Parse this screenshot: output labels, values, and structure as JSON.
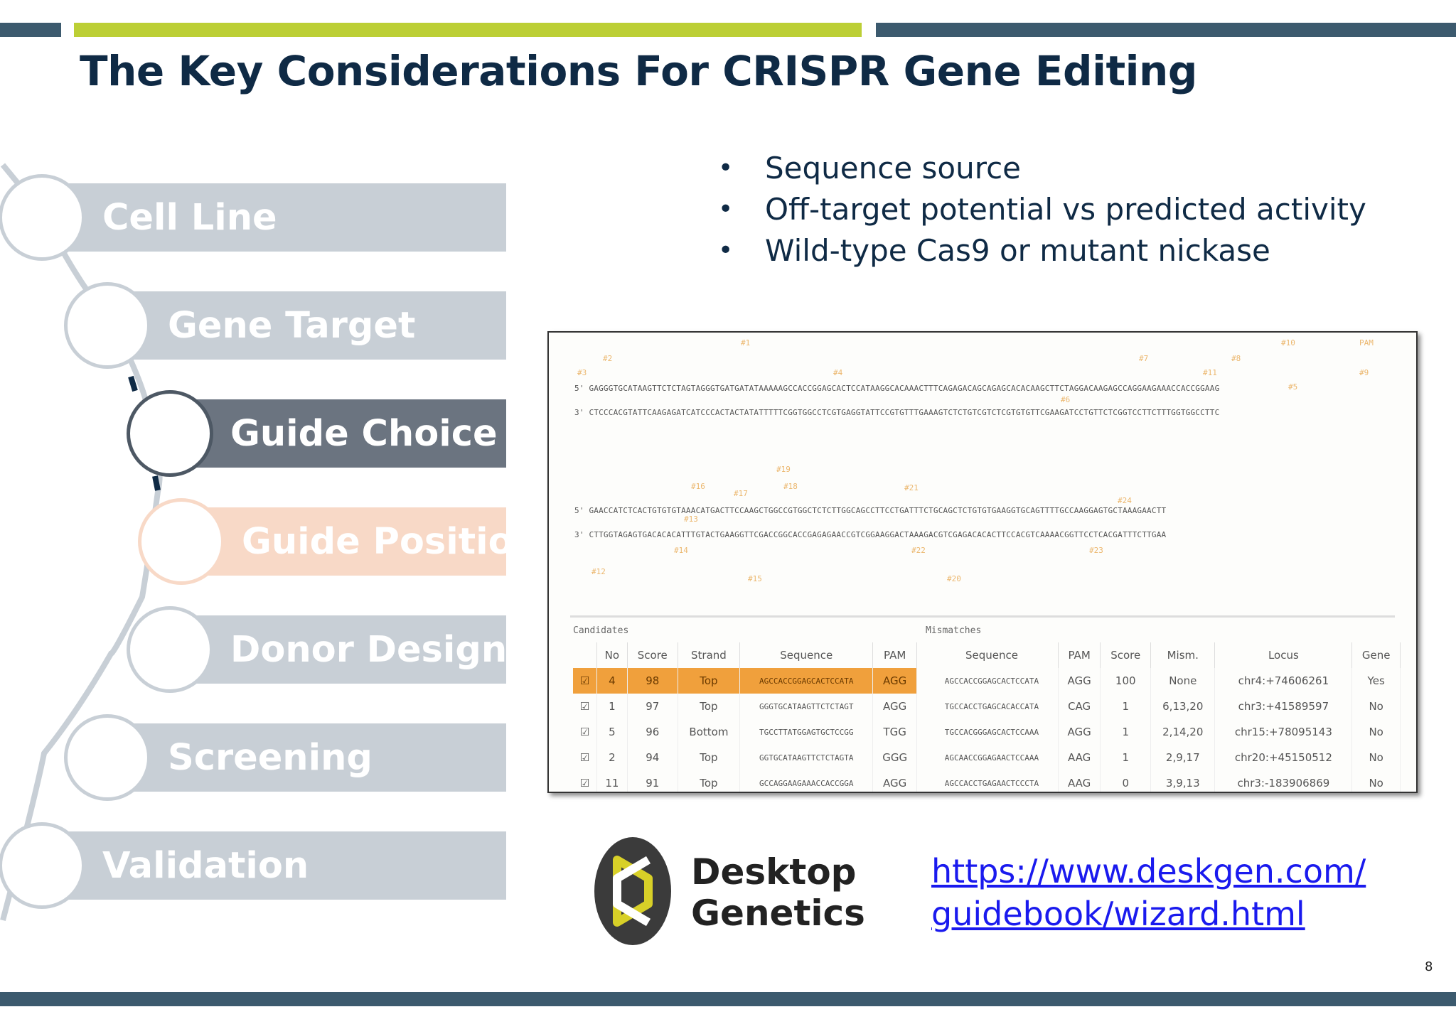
{
  "slide": {
    "title": "The Key Considerations For CRISPR Gene Editing",
    "page_number": "8",
    "colors": {
      "navy": "#3c5a6e",
      "lime": "#bccf35",
      "title": "#0f2a45",
      "active_step": "#6b7480",
      "highlight_step": "#f8d9c7",
      "step": "#c8cfd6"
    }
  },
  "steps": [
    {
      "label": "Cell Line",
      "state": "normal"
    },
    {
      "label": "Gene Target",
      "state": "normal"
    },
    {
      "label": "Guide Choice",
      "state": "active"
    },
    {
      "label": "Guide Position",
      "state": "highlight"
    },
    {
      "label": "Donor Design",
      "state": "normal"
    },
    {
      "label": "Screening",
      "state": "normal"
    },
    {
      "label": "Validation",
      "state": "normal"
    }
  ],
  "bullets": [
    "Sequence source",
    "Off-target potential vs predicted activity",
    "Wild-type Cas9 or mutant nickase"
  ],
  "screenshot": {
    "seq_rows": [
      "5' GAGGGTGCATAAGTTCTCTAGTAGGGTGATGATATAAAAAGCCACCGGAGCACTCCATAAGGCACAAACTTTCAGAGACAGCAGAGCACACAAGCTTCTAGGACAAGAGCCAGGAAGAAACCACCGGAAG",
      "3' CTCCCACGTATTCAAGAGATCATCCCACTACTATATTTTTCGGTGGCCTCGTGAGGTATTCCGTGTTTGAAAGTCTCTGTCGTCTCGTGTGTTCGAAGATCCTGTTCTCGGTCCTTCTTTGGTGGCCTTC",
      "5' GAACCATCTCACTGTGTGTAAACATGACTTCCAAGCTGGCCGTGGCTCTCTTGGCAGCCTTCCTGATTTCTGCAGCTCTGTGTGAAGGTGCAGTTTTGCCAAGGAGTGCTAAAGAACTT",
      "3' CTTGGTAGAGTGACACACATTTGTACTGAAGGTTCGACCGGCACCGAGAGAACCGTCGGAAGGACTAAAGACGTCGAGACACACTTCCACGTCAAAACGGTTCCTCACGATTTCTTGAA"
    ],
    "labels": [
      "#1",
      "#2",
      "#3",
      "#4",
      "#5",
      "#6",
      "#7",
      "#8",
      "#9",
      "#10",
      "#11",
      "#12",
      "#13",
      "#14",
      "#15",
      "#16",
      "#17",
      "#18",
      "#19",
      "#20",
      "#21",
      "#22",
      "#23",
      "#24",
      "PAM"
    ],
    "candidates_label": "Candidates",
    "mismatches_label": "Mismatches",
    "candidates": {
      "headers": [
        "",
        "No",
        "Score",
        "Strand",
        "Sequence",
        "PAM"
      ],
      "rows": [
        [
          "☑",
          "4",
          "98",
          "Top",
          "AGCCACCGGAGCACTCCATA",
          "AGG"
        ],
        [
          "☑",
          "1",
          "97",
          "Top",
          "GGGTGCATAAGTTCTCTAGT",
          "AGG"
        ],
        [
          "☑",
          "5",
          "96",
          "Bottom",
          "TGCCTTATGGAGTGCTCCGG",
          "TGG"
        ],
        [
          "☑",
          "2",
          "94",
          "Top",
          "GGTGCATAAGTTCTCTAGTA",
          "GGG"
        ],
        [
          "☑",
          "11",
          "91",
          "Top",
          "GCCAGGAAGAAACCACCGGA",
          "AGG"
        ]
      ]
    },
    "mismatches": {
      "headers": [
        "Sequence",
        "PAM",
        "Score",
        "Mism.",
        "Locus",
        "Gene"
      ],
      "rows": [
        [
          "AGCCACCGGAGCACTCCATA",
          "AGG",
          "100",
          "None",
          "chr4:+74606261",
          "Yes"
        ],
        [
          "TGCCACCTGAGCACACCATA",
          "CAG",
          "1",
          "6,13,20",
          "chr3:+41589597",
          "No"
        ],
        [
          "TGCCACGGGAGCACTCCAAA",
          "AGG",
          "1",
          "2,14,20",
          "chr15:+78095143",
          "No"
        ],
        [
          "AGCAACCGGAGAACTCCAAA",
          "AAG",
          "1",
          "2,9,17",
          "chr20:+45150512",
          "No"
        ],
        [
          "AGCCACCTGAGAACTCCCTA",
          "AAG",
          "0",
          "3,9,13",
          "chr3:-183906869",
          "No"
        ]
      ]
    }
  },
  "logo": {
    "line1": "Desktop",
    "line2": "Genetics"
  },
  "link": {
    "line1": "https://www.deskgen.com/",
    "line2": "guidebook/wizard.html"
  }
}
